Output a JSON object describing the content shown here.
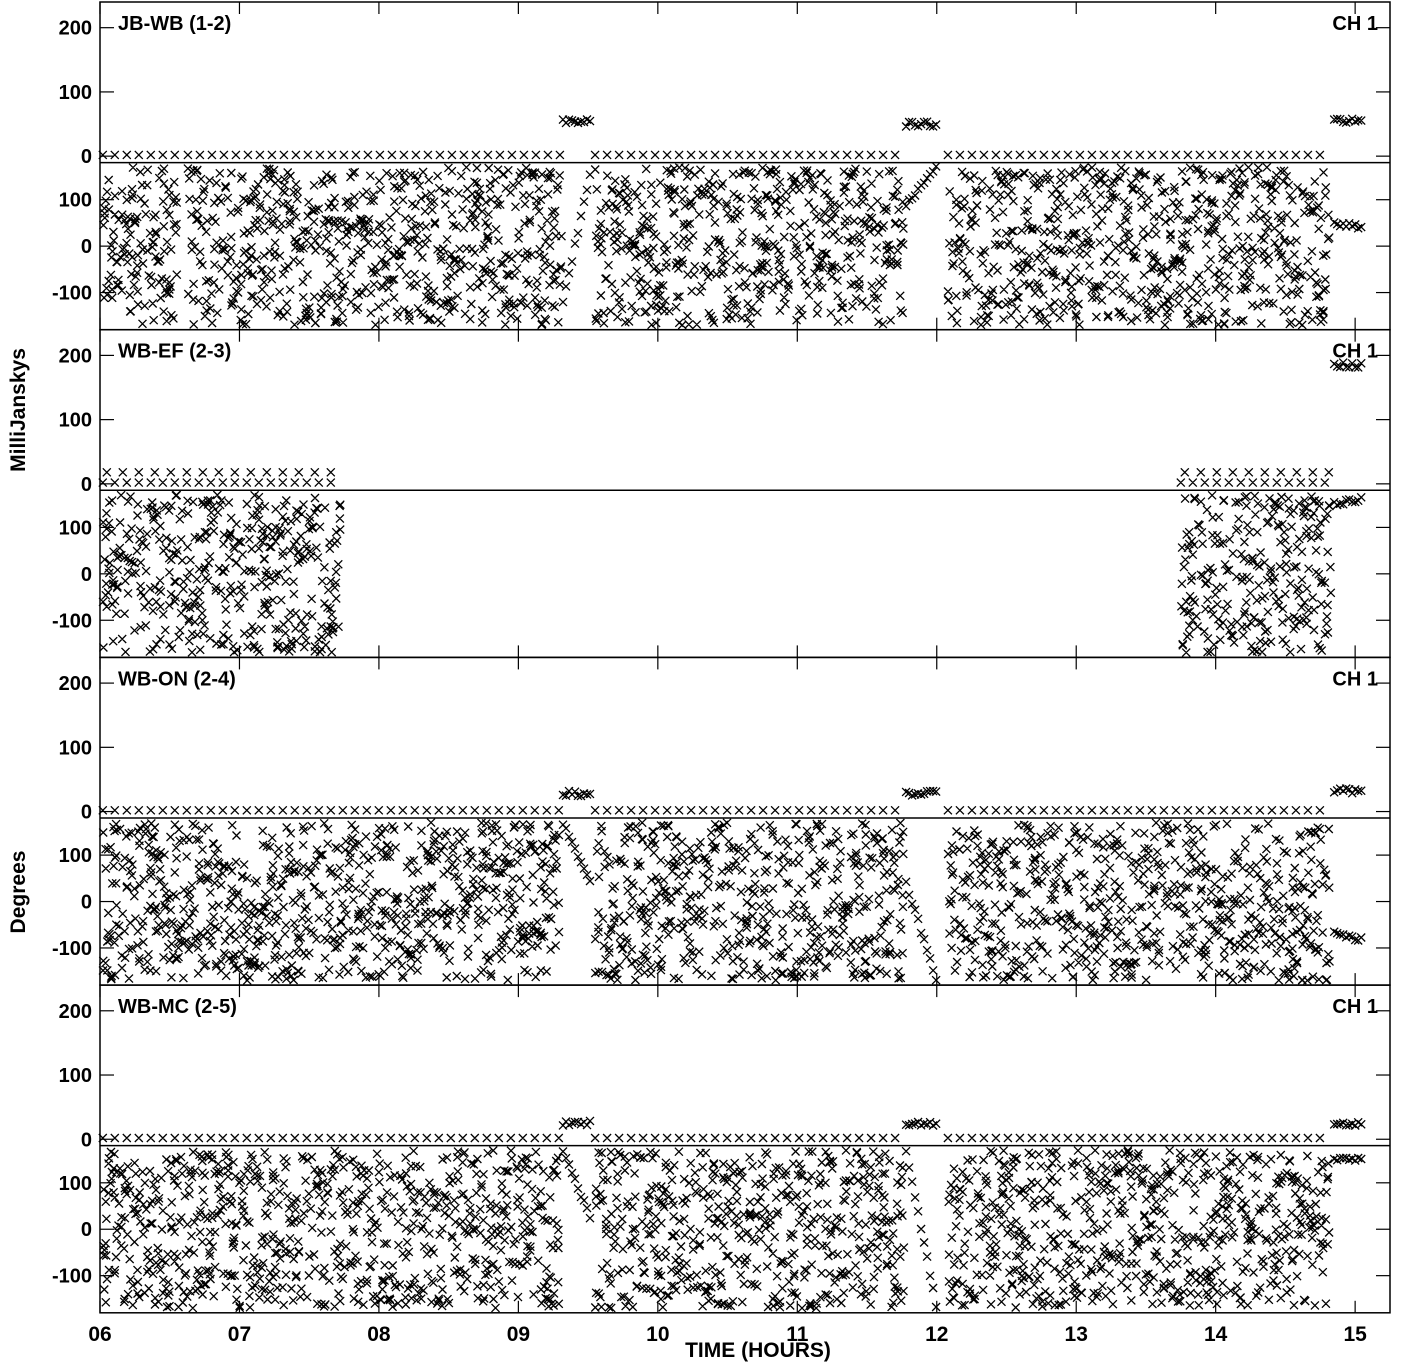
{
  "chart_data": {
    "type": "scatter",
    "xlabel": "TIME (HOURS)",
    "ylabel_amplitude": "MilliJanskys",
    "ylabel_phase": "Degrees",
    "x_ticks": [
      "06",
      "07",
      "08",
      "09",
      "10",
      "11",
      "12",
      "13",
      "14",
      "15"
    ],
    "xlim": [
      6.0,
      15.25
    ],
    "amplitude_ticks": [
      "200",
      "100",
      "0"
    ],
    "amplitude_ylim": [
      -10,
      240
    ],
    "phase_ticks": [
      "100",
      "0",
      "-100"
    ],
    "phase_ylim": [
      -180,
      180
    ],
    "marker": "x",
    "color": "#000000",
    "panels": [
      {
        "baseline": "JB-WB (1-2)",
        "channel": "CH 1",
        "target_scans": [
          [
            6.02,
            6.55
          ],
          [
            6.63,
            9.3
          ],
          [
            9.55,
            11.75
          ],
          [
            12.08,
            14.82
          ]
        ],
        "target_amplitude": 2,
        "target_phase": "scattered",
        "calibrator_scans": [
          {
            "start": 9.32,
            "end": 9.52,
            "amplitude": 55,
            "phase_start": -120,
            "phase_end": 160
          },
          {
            "start": 11.78,
            "end": 12.0,
            "amplitude": 50,
            "phase_start": 90,
            "phase_end": 170
          },
          {
            "start": 14.85,
            "end": 15.05,
            "amplitude": 55,
            "phase_start": 50,
            "phase_end": 40
          }
        ]
      },
      {
        "baseline": "WB-EF (2-3)",
        "channel": "CH 1",
        "target_scans": [
          [
            6.02,
            7.72
          ],
          [
            13.75,
            14.82
          ]
        ],
        "target_amplitude": 2,
        "secondary_amplitude": 18,
        "target_phase": "scattered",
        "calibrator_scans": [
          {
            "start": 14.85,
            "end": 15.05,
            "amplitude": 185,
            "phase_start": 150,
            "phase_end": 160
          }
        ]
      },
      {
        "baseline": "WB-ON (2-4)",
        "channel": "CH 1",
        "target_scans": [
          [
            6.02,
            9.3
          ],
          [
            9.55,
            11.75
          ],
          [
            12.08,
            14.82
          ]
        ],
        "target_amplitude": 2,
        "target_phase": "scattered",
        "calibrator_scans": [
          {
            "start": 9.32,
            "end": 9.52,
            "amplitude": 28,
            "phase_start": 170,
            "phase_end": 40
          },
          {
            "start": 11.78,
            "end": 12.0,
            "amplitude": 28,
            "phase_start": 40,
            "phase_end": -170
          },
          {
            "start": 14.85,
            "end": 15.05,
            "amplitude": 32,
            "phase_start": -70,
            "phase_end": -80
          }
        ]
      },
      {
        "baseline": "WB-MC (2-5)",
        "channel": "CH 1",
        "target_scans": [
          [
            6.02,
            9.3
          ],
          [
            9.55,
            11.75
          ],
          [
            12.08,
            14.82
          ]
        ],
        "target_amplitude": 2,
        "target_phase": "scattered",
        "calibrator_scans": [
          {
            "start": 9.32,
            "end": 9.52,
            "amplitude": 25,
            "phase_start": 170,
            "phase_end": 20
          },
          {
            "start": 11.78,
            "end": 12.0,
            "amplitude": 25,
            "phase_start": 170,
            "phase_end": -170
          },
          {
            "start": 14.85,
            "end": 15.05,
            "amplitude": 25,
            "phase_start": 150,
            "phase_end": 150
          }
        ]
      }
    ]
  }
}
